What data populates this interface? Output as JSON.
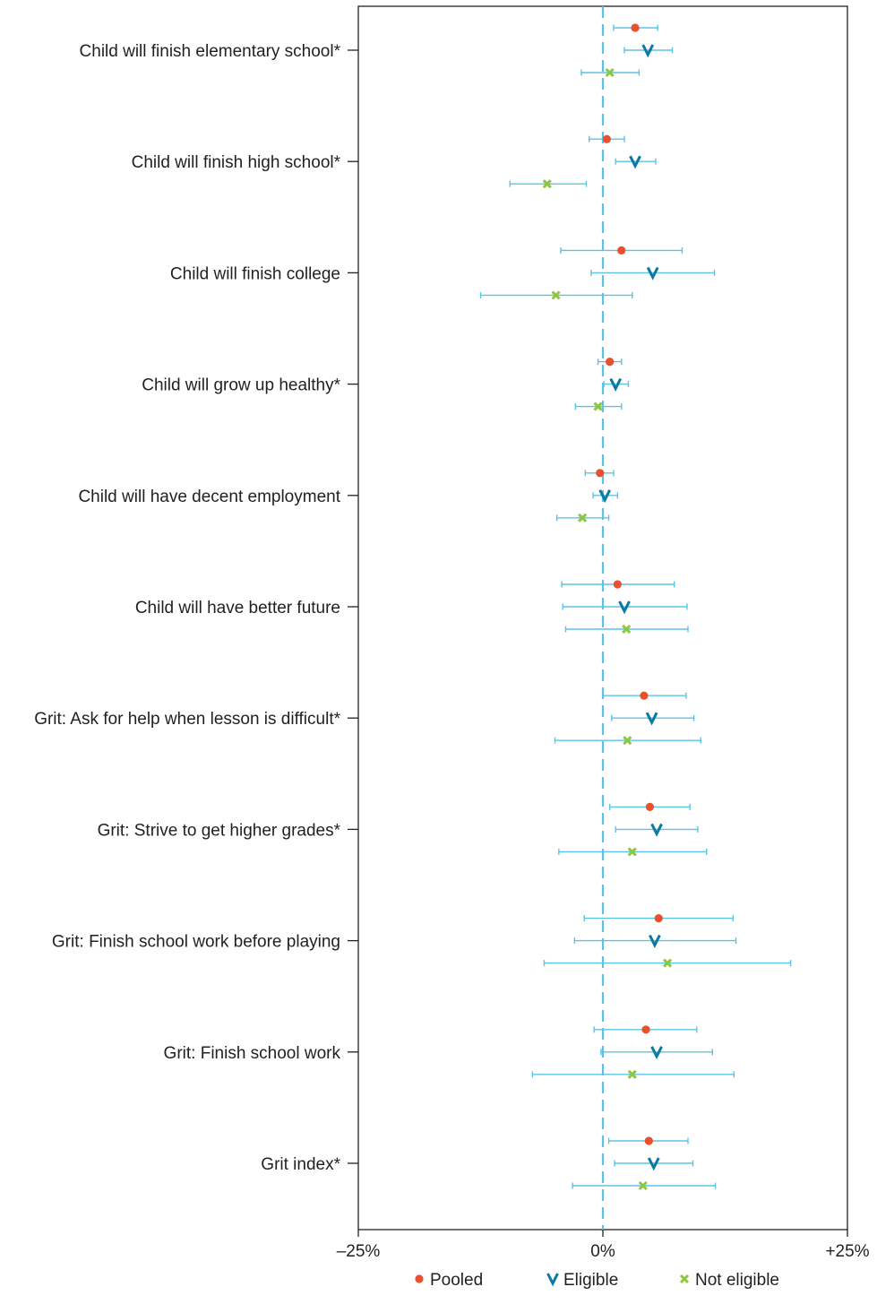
{
  "chart_data": {
    "type": "forest",
    "title": "",
    "xlabel": "",
    "ylabel": "",
    "xlim": [
      -25,
      25
    ],
    "x_ticks": [
      {
        "value": -25,
        "label": "–25%"
      },
      {
        "value": 0,
        "label": "0%"
      },
      {
        "value": 25,
        "label": "+25%"
      }
    ],
    "reference_line": 0,
    "grid": false,
    "legend_position": "bottom",
    "categories": [
      "Child will finish elementary school*",
      "Child will finish high school*",
      "Child will finish college",
      "Child will grow up healthy*",
      "Child will have decent employment",
      "Child will have better future",
      "Grit: Ask for help when lesson is difficult*",
      "Grit: Strive to get higher grades*",
      "Grit: Finish school work before playing",
      "Grit: Finish school work",
      "Grit index*"
    ],
    "series": [
      {
        "name": "Pooled",
        "marker": "dot",
        "color": "#e8502e",
        "points": [
          {
            "estimate": 3.3,
            "lower": 1.1,
            "upper": 5.6
          },
          {
            "estimate": 0.4,
            "lower": -1.4,
            "upper": 2.2
          },
          {
            "estimate": 1.9,
            "lower": -4.3,
            "upper": 8.1
          },
          {
            "estimate": 0.7,
            "lower": -0.5,
            "upper": 1.9
          },
          {
            "estimate": -0.3,
            "lower": -1.8,
            "upper": 1.1
          },
          {
            "estimate": 1.5,
            "lower": -4.2,
            "upper": 7.3
          },
          {
            "estimate": 4.2,
            "lower": 0.0,
            "upper": 8.5
          },
          {
            "estimate": 4.8,
            "lower": 0.7,
            "upper": 8.9
          },
          {
            "estimate": 5.7,
            "lower": -1.9,
            "upper": 13.3
          },
          {
            "estimate": 4.4,
            "lower": -0.9,
            "upper": 9.6
          },
          {
            "estimate": 4.7,
            "lower": 0.6,
            "upper": 8.7
          }
        ]
      },
      {
        "name": "Eligible",
        "marker": "v",
        "color": "#0a7aa3",
        "points": [
          {
            "estimate": 4.6,
            "lower": 2.2,
            "upper": 7.1
          },
          {
            "estimate": 3.3,
            "lower": 1.3,
            "upper": 5.4
          },
          {
            "estimate": 5.1,
            "lower": -1.2,
            "upper": 11.4
          },
          {
            "estimate": 1.3,
            "lower": 0.1,
            "upper": 2.6
          },
          {
            "estimate": 0.2,
            "lower": -1.0,
            "upper": 1.5
          },
          {
            "estimate": 2.2,
            "lower": -4.1,
            "upper": 8.6
          },
          {
            "estimate": 5.0,
            "lower": 0.9,
            "upper": 9.3
          },
          {
            "estimate": 5.5,
            "lower": 1.3,
            "upper": 9.7
          },
          {
            "estimate": 5.3,
            "lower": -2.9,
            "upper": 13.6
          },
          {
            "estimate": 5.5,
            "lower": -0.2,
            "upper": 11.2
          },
          {
            "estimate": 5.2,
            "lower": 1.2,
            "upper": 9.2
          }
        ]
      },
      {
        "name": "Not eligible",
        "marker": "x",
        "color": "#8dc63f",
        "points": [
          {
            "estimate": 0.7,
            "lower": -2.2,
            "upper": 3.7
          },
          {
            "estimate": -5.7,
            "lower": -9.5,
            "upper": -1.7
          },
          {
            "estimate": -4.8,
            "lower": -12.5,
            "upper": 3.0
          },
          {
            "estimate": -0.5,
            "lower": -2.8,
            "upper": 1.9
          },
          {
            "estimate": -2.1,
            "lower": -4.7,
            "upper": 0.6
          },
          {
            "estimate": 2.4,
            "lower": -3.8,
            "upper": 8.7
          },
          {
            "estimate": 2.5,
            "lower": -4.9,
            "upper": 10.0
          },
          {
            "estimate": 3.0,
            "lower": -4.5,
            "upper": 10.6
          },
          {
            "estimate": 6.6,
            "lower": -6.0,
            "upper": 19.2
          },
          {
            "estimate": 3.0,
            "lower": -7.2,
            "upper": 13.4
          },
          {
            "estimate": 4.1,
            "lower": -3.1,
            "upper": 11.5
          }
        ]
      }
    ]
  },
  "colors": {
    "axis": "#231f20",
    "errorbar": "#5bc4e6",
    "reference_line": "#5bc4e6"
  }
}
